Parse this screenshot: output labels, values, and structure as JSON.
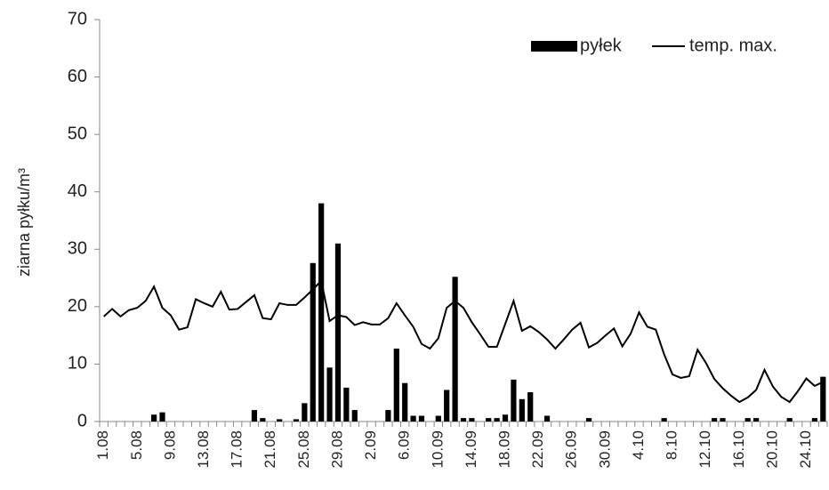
{
  "chart_data": {
    "type": "bar",
    "y_label": "ziarna pyłku/m³",
    "categories": [
      "1.08",
      null,
      null,
      null,
      "5.08",
      null,
      null,
      null,
      "9.08",
      null,
      null,
      null,
      "13.08",
      null,
      null,
      null,
      "17.08",
      null,
      null,
      null,
      "21.08",
      null,
      null,
      null,
      "25.08",
      null,
      null,
      null,
      "29.08",
      null,
      null,
      null,
      "2.09",
      null,
      null,
      null,
      "6.09",
      null,
      null,
      null,
      "10.09",
      null,
      null,
      null,
      "14.09",
      null,
      null,
      null,
      "18.09",
      null,
      null,
      null,
      "22.09",
      null,
      null,
      null,
      "26.09",
      null,
      null,
      null,
      "30.09",
      null,
      null,
      null,
      "4.10",
      null,
      null,
      null,
      "8.10",
      null,
      null,
      null,
      "12.10",
      null,
      null,
      null,
      "16.10",
      null,
      null,
      null,
      "20.10",
      null,
      null,
      null,
      "24.10",
      null,
      null
    ],
    "series": [
      {
        "name": "pyłek",
        "type": "bar",
        "color": "#000000",
        "values": [
          0,
          0,
          0,
          0,
          0,
          0,
          1.2,
          1.6,
          0,
          0,
          0,
          0,
          0,
          0,
          0,
          0,
          0,
          0,
          2,
          0.6,
          0,
          0.4,
          0,
          0.4,
          3.2,
          27.6,
          38,
          9.4,
          31,
          5.9,
          2,
          0,
          0,
          0,
          2,
          12.7,
          6.7,
          1,
          1,
          0,
          1,
          5.5,
          25.2,
          0.6,
          0.6,
          0,
          0.6,
          0.6,
          1.2,
          7.3,
          3.9,
          5.1,
          0,
          1,
          0,
          0,
          0,
          0,
          0.6,
          0,
          0,
          0,
          0,
          0,
          0,
          0,
          0,
          0.6,
          0,
          0,
          0,
          0,
          0,
          0.6,
          0.6,
          0,
          0,
          0.6,
          0.6,
          0,
          0,
          0,
          0.6,
          0,
          0,
          0.6,
          7.8
        ]
      },
      {
        "name": "temp. max.",
        "type": "line",
        "color": "#000000",
        "values": [
          18.3,
          19.6,
          18.3,
          19.4,
          19.8,
          21,
          23.5,
          19.8,
          18.5,
          16,
          16.4,
          21.3,
          20.6,
          20,
          22.6,
          19.5,
          19.6,
          20.8,
          22,
          18,
          17.8,
          20.6,
          20.3,
          20.3,
          21.6,
          23,
          24.5,
          17.5,
          18.5,
          18.2,
          16.8,
          17.3,
          16.9,
          16.9,
          18,
          20.6,
          18.5,
          16.5,
          13.5,
          12.7,
          14.5,
          19.8,
          21,
          19.8,
          17.3,
          15.2,
          13,
          13,
          17,
          21,
          15.8,
          16.6,
          15.6,
          14.3,
          12.7,
          14.3,
          16,
          17.2,
          12.9,
          13.7,
          15,
          16.2,
          13.1,
          15.3,
          19,
          16.5,
          16,
          11.7,
          8.2,
          7.6,
          7.9,
          12.5,
          10.2,
          7.4,
          5.8,
          4.5,
          3.4,
          4.2,
          5.5,
          9,
          6.1,
          4.3,
          3.4,
          5.3,
          7.5,
          6.2,
          6.9
        ]
      }
    ],
    "ylim": [
      0,
      70
    ],
    "yticks": [
      0,
      10,
      20,
      30,
      40,
      50,
      60,
      70
    ],
    "grid": false,
    "legend": "top-right"
  }
}
